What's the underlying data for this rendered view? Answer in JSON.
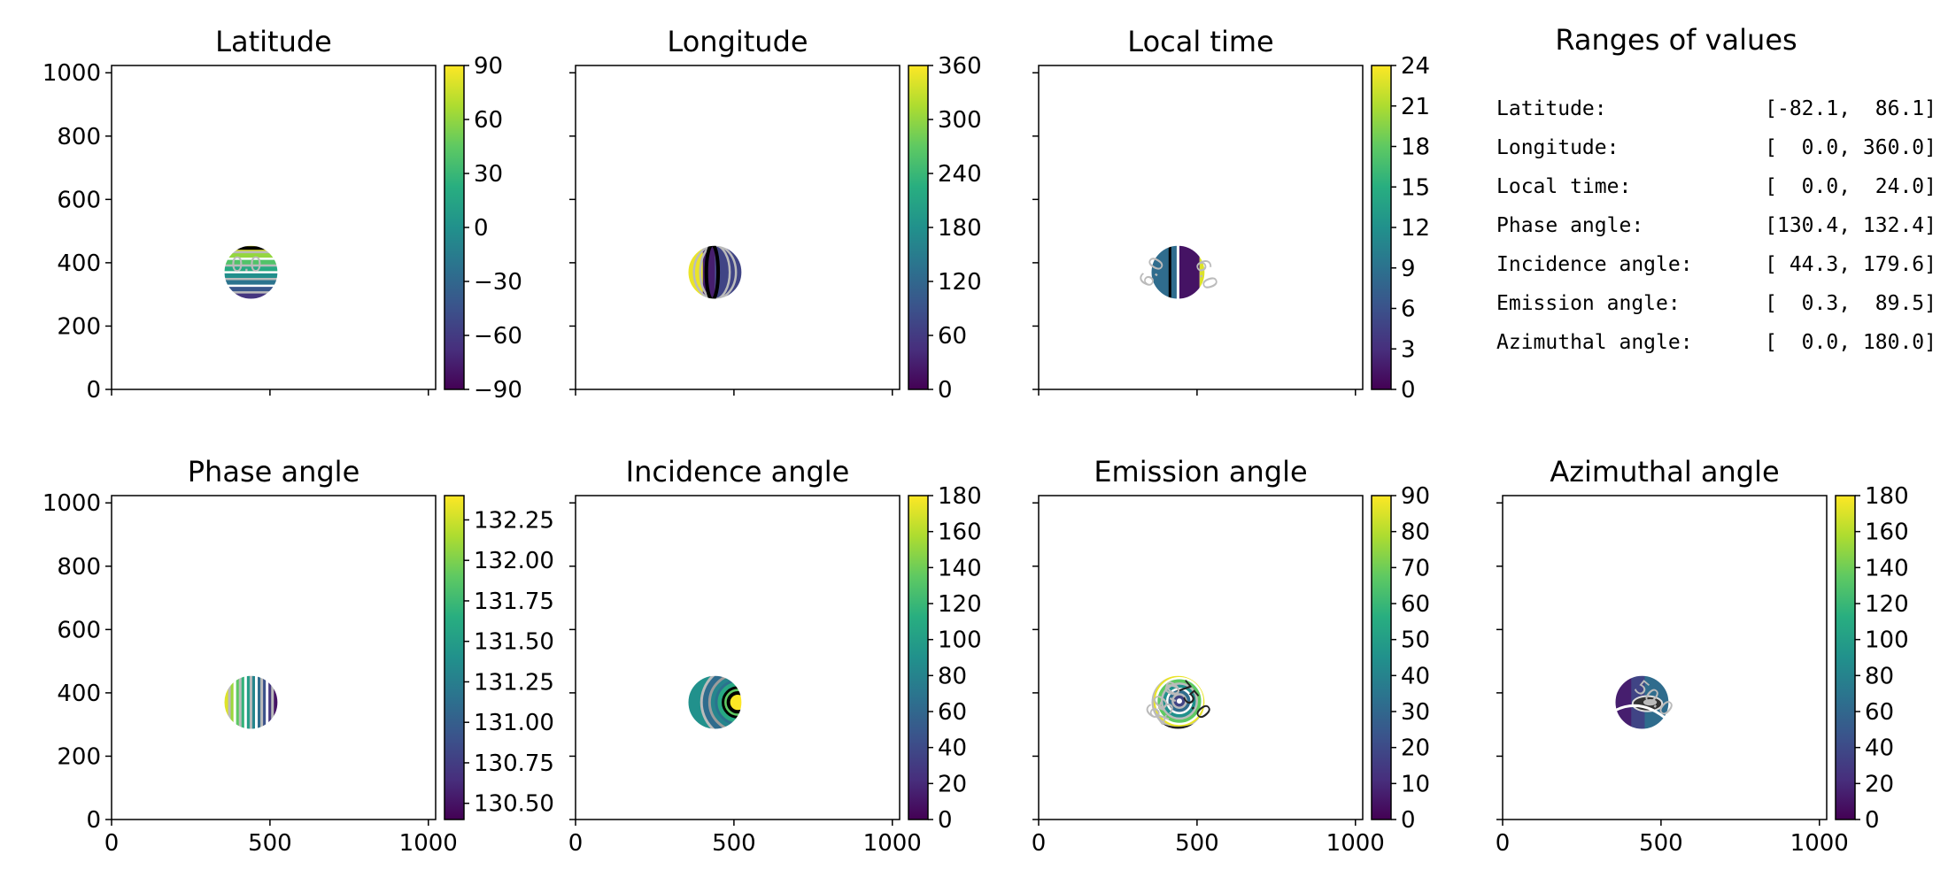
{
  "chart_data": {
    "type": "heatmap",
    "colormap": "viridis",
    "colormap_stops": [
      "#440154",
      "#472f7d",
      "#3b528b",
      "#2c728e",
      "#21918c",
      "#28ae80",
      "#5ec962",
      "#addc30",
      "#fde725"
    ],
    "panels": [
      {
        "title": "Latitude",
        "colorbar": {
          "min": -90,
          "max": 90,
          "ticks": [
            -90,
            -60,
            -30,
            0,
            30,
            60,
            90
          ],
          "tick_labels": [
            "−90",
            "−60",
            "−30",
            "0",
            "30",
            "60",
            "90"
          ]
        },
        "pattern": "latitude",
        "contour_labels": [
          {
            "text": "0.0",
            "angle": 0
          }
        ]
      },
      {
        "title": "Longitude",
        "colorbar": {
          "min": 0,
          "max": 360,
          "ticks": [
            0,
            60,
            120,
            180,
            240,
            300,
            360
          ],
          "tick_labels": [
            "0",
            "60",
            "120",
            "180",
            "240",
            "300",
            "360"
          ]
        },
        "pattern": "longitude",
        "contour_labels": []
      },
      {
        "title": "Local time",
        "colorbar": {
          "min": 0,
          "max": 24,
          "ticks": [
            0,
            3,
            6,
            9,
            12,
            15,
            18,
            21,
            24
          ],
          "tick_labels": [
            "0",
            "3",
            "6",
            "9",
            "12",
            "15",
            "18",
            "21",
            "24"
          ]
        },
        "pattern": "localtime",
        "contour_labels": [
          {
            "text": "6.0",
            "angle": -60
          },
          {
            "text": "6.0",
            "angle": 70
          }
        ]
      },
      {
        "title": "Phase angle",
        "colorbar": {
          "min": 130.4,
          "max": 132.4,
          "ticks": [
            130.5,
            130.75,
            131.0,
            131.25,
            131.5,
            131.75,
            132.0,
            132.25
          ],
          "tick_labels": [
            "130.50",
            "130.75",
            "131.00",
            "131.25",
            "131.50",
            "131.75",
            "132.00",
            "132.25"
          ]
        },
        "pattern": "phase",
        "contour_labels": []
      },
      {
        "title": "Incidence angle",
        "colorbar": {
          "min": 0,
          "max": 180,
          "ticks": [
            0,
            20,
            40,
            60,
            80,
            100,
            120,
            140,
            160,
            180
          ],
          "tick_labels": [
            "0",
            "20",
            "40",
            "60",
            "80",
            "100",
            "120",
            "140",
            "160",
            "180"
          ]
        },
        "pattern": "incidence",
        "contour_labels": []
      },
      {
        "title": "Emission angle",
        "colorbar": {
          "min": 0,
          "max": 90,
          "ticks": [
            0,
            10,
            20,
            30,
            40,
            50,
            60,
            70,
            80,
            90
          ],
          "tick_labels": [
            "0",
            "10",
            "20",
            "30",
            "40",
            "50",
            "60",
            "70",
            "80",
            "90"
          ]
        },
        "pattern": "emission",
        "contour_labels": [
          {
            "text": "75.0",
            "angle": 50
          },
          {
            "text": "60.0",
            "angle": -50
          },
          {
            "text": "45.0",
            "angle": -70
          }
        ]
      },
      {
        "title": "Azimuthal angle",
        "colorbar": {
          "min": 0,
          "max": 180,
          "ticks": [
            0,
            20,
            40,
            60,
            80,
            100,
            120,
            140,
            160,
            180
          ],
          "tick_labels": [
            "0",
            "20",
            "40",
            "60",
            "80",
            "100",
            "120",
            "140",
            "160",
            "180"
          ]
        },
        "pattern": "azimuth",
        "contour_labels": [
          {
            "text": "50.0",
            "angle": 40
          }
        ]
      }
    ],
    "x_ticks": [
      0,
      500,
      1000
    ],
    "y_ticks": [
      0,
      200,
      400,
      600,
      800,
      1000
    ],
    "xlim": [
      0,
      1023
    ],
    "ylim": [
      0,
      1023
    ],
    "disc": {
      "center_x": 440,
      "center_y": 370,
      "radius": 85
    },
    "ranges_panel": {
      "title": "Ranges of values",
      "rows": [
        {
          "label": "Latitude:",
          "range": "[-82.1,  86.1]"
        },
        {
          "label": "Longitude:",
          "range": "[  0.0, 360.0]"
        },
        {
          "label": "Local time:",
          "range": "[  0.0,  24.0]"
        },
        {
          "label": "Phase angle:",
          "range": "[130.4, 132.4]"
        },
        {
          "label": "Incidence angle:",
          "range": "[ 44.3, 179.6]"
        },
        {
          "label": "Emission angle:",
          "range": "[  0.3,  89.5]"
        },
        {
          "label": "Azimuthal angle:",
          "range": "[  0.0, 180.0]"
        }
      ]
    }
  }
}
